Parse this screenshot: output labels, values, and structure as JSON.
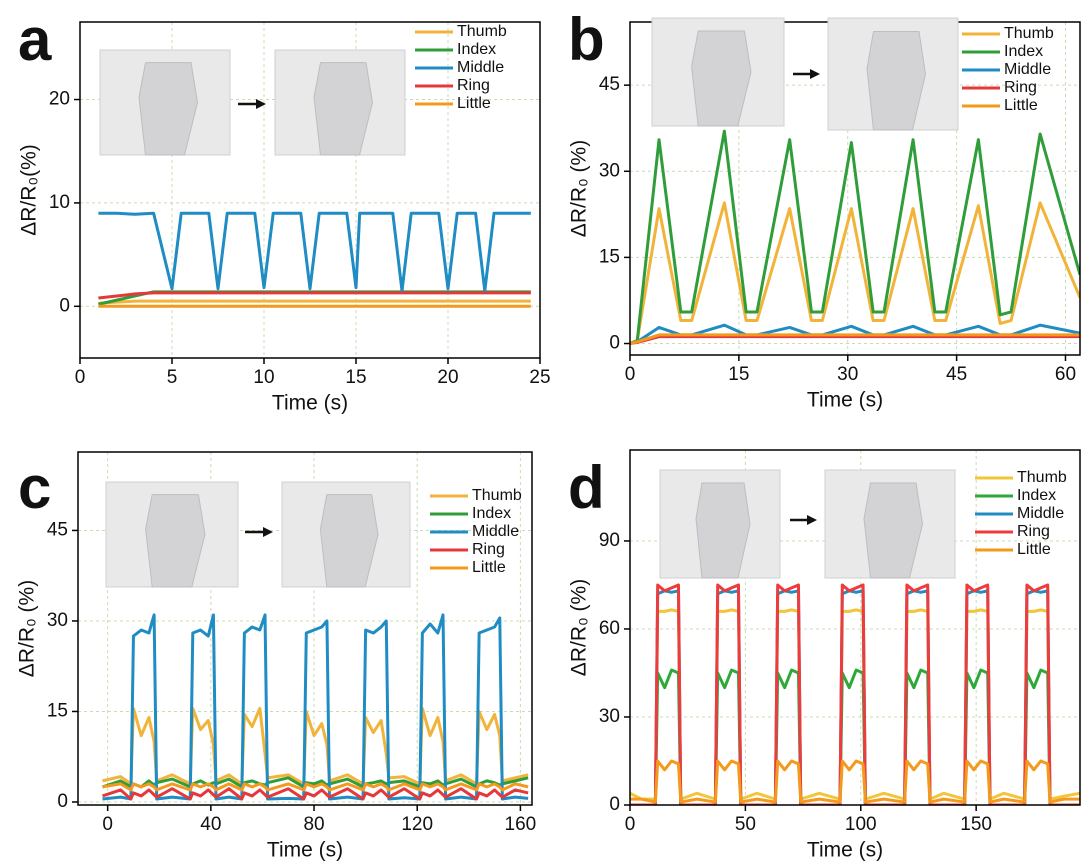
{
  "chart_data": [
    {
      "type": "line",
      "label": "a",
      "x_label": "Time (s)",
      "y_label": "ΔR/R₀(%)",
      "xlim": [
        0,
        25
      ],
      "ylim": [
        -5,
        27.5
      ],
      "xticks": [
        0,
        5,
        10,
        15,
        20,
        25
      ],
      "yticks": [
        0,
        10,
        20
      ],
      "grid": true,
      "legend": "upper right",
      "x": [
        1,
        2,
        3,
        4,
        5,
        5.5,
        7,
        7.5,
        8,
        9.5,
        10,
        10.5,
        12,
        12.5,
        13,
        14.5,
        15,
        15.2,
        17,
        17.5,
        18,
        19.5,
        20,
        20.5,
        21.5,
        22,
        22.5,
        24,
        24.5
      ],
      "series": [
        {
          "name": "Thumb",
          "color": "#f2b33a",
          "values": [
            0.3,
            0.4,
            0.5,
            0.5,
            0.5,
            0.5,
            0.5,
            0.5,
            0.5,
            0.5,
            0.5,
            0.5,
            0.5,
            0.5,
            0.5,
            0.5,
            0.5,
            0.5,
            0.5,
            0.5,
            0.5,
            0.5,
            0.5,
            0.5,
            0.5,
            0.5,
            0.5,
            0.5,
            0.5
          ]
        },
        {
          "name": "Index",
          "color": "#2f9e3a",
          "values": [
            0.2,
            0.6,
            1.0,
            1.4,
            1.4,
            1.4,
            1.4,
            1.4,
            1.4,
            1.4,
            1.4,
            1.4,
            1.4,
            1.4,
            1.4,
            1.4,
            1.4,
            1.4,
            1.4,
            1.4,
            1.4,
            1.4,
            1.4,
            1.4,
            1.4,
            1.4,
            1.4,
            1.4,
            1.4
          ]
        },
        {
          "name": "Middle",
          "color": "#1f8cc4",
          "values": [
            9.0,
            9.0,
            8.9,
            9.0,
            1.7,
            9.0,
            9.0,
            1.7,
            9.0,
            9.0,
            1.8,
            9.0,
            9.0,
            1.7,
            9.0,
            9.0,
            1.8,
            9.0,
            9.0,
            1.5,
            9.0,
            9.0,
            1.7,
            9.0,
            9.0,
            1.5,
            9.0,
            9.0,
            9.0
          ]
        },
        {
          "name": "Ring",
          "color": "#e5383b",
          "values": [
            0.8,
            1.0,
            1.2,
            1.3,
            1.3,
            1.3,
            1.3,
            1.3,
            1.3,
            1.3,
            1.3,
            1.3,
            1.3,
            1.3,
            1.3,
            1.3,
            1.3,
            1.3,
            1.3,
            1.3,
            1.3,
            1.3,
            1.3,
            1.3,
            1.3,
            1.3,
            1.3,
            1.3,
            1.3
          ]
        },
        {
          "name": "Little",
          "color": "#f39a1e",
          "values": [
            0,
            0,
            0,
            0,
            0,
            0,
            0,
            0,
            0,
            0,
            0,
            0,
            0,
            0,
            0,
            0,
            0,
            0,
            0,
            0,
            0,
            0,
            0,
            0,
            0,
            0,
            0,
            0,
            0
          ]
        }
      ]
    },
    {
      "type": "line",
      "label": "b",
      "x_label": "Time (s)",
      "y_label": "ΔR/R₀ (%)",
      "xlim": [
        0,
        62
      ],
      "ylim": [
        -2,
        56
      ],
      "xticks": [
        0,
        15,
        30,
        45,
        60
      ],
      "yticks": [
        0,
        15,
        30,
        45
      ],
      "grid": true,
      "legend": "upper right",
      "x": [
        0,
        1,
        4,
        7,
        8.5,
        13,
        16,
        17.5,
        22,
        25,
        26.5,
        30.5,
        33.5,
        35,
        39,
        42,
        43.5,
        48,
        51,
        52.5,
        56.5,
        62
      ],
      "series": [
        {
          "name": "Thumb",
          "color": "#f2b33a",
          "values": [
            0,
            0.5,
            23.5,
            4,
            4,
            24.5,
            4,
            4,
            23.5,
            4,
            4,
            23.5,
            4,
            4,
            23.5,
            4,
            4,
            24,
            3.5,
            4,
            24.5,
            8
          ]
        },
        {
          "name": "Index",
          "color": "#2f9e3a",
          "values": [
            0,
            0.5,
            35.5,
            5.5,
            5.5,
            37,
            5.5,
            5.5,
            35.5,
            5.5,
            5.5,
            35,
            5.5,
            5.5,
            35.5,
            5.5,
            5.5,
            35.5,
            5,
            5.5,
            36.5,
            12
          ]
        },
        {
          "name": "Middle",
          "color": "#1f8cc4",
          "values": [
            0,
            0.3,
            2.8,
            1.5,
            1.5,
            3.2,
            1.5,
            1.5,
            2.8,
            1.5,
            1.5,
            3,
            1.5,
            1.5,
            3,
            1.5,
            1.5,
            3,
            1.5,
            1.5,
            3.2,
            1.8
          ]
        },
        {
          "name": "Ring",
          "color": "#e5383b",
          "values": [
            0,
            0.2,
            1.2,
            1.2,
            1.2,
            1.2,
            1.2,
            1.2,
            1.2,
            1.2,
            1.2,
            1.2,
            1.2,
            1.2,
            1.2,
            1.2,
            1.2,
            1.2,
            1.2,
            1.2,
            1.2,
            1.2
          ]
        },
        {
          "name": "Little",
          "color": "#f39a1e",
          "values": [
            0,
            0.3,
            1.5,
            1.5,
            1.5,
            1.5,
            1.5,
            1.5,
            1.5,
            1.5,
            1.5,
            1.5,
            1.5,
            1.5,
            1.5,
            1.5,
            1.5,
            1.5,
            1.5,
            1.5,
            1.5,
            1.5
          ]
        }
      ]
    },
    {
      "type": "line",
      "label": "c",
      "x_label": "Time (s)",
      "y_label": "ΔR/R₀ (%)",
      "xlim": [
        -11.5,
        164.5
      ],
      "ylim": [
        -0.5,
        58
      ],
      "xticks": [
        0,
        40,
        80,
        120,
        160
      ],
      "yticks": [
        0,
        15,
        30,
        45
      ],
      "grid": true,
      "legend": "upper right",
      "x": [
        -2,
        5,
        9,
        10,
        13,
        16,
        18,
        19,
        25,
        32,
        33,
        36,
        39,
        41,
        42,
        47,
        52,
        53,
        56,
        59,
        61,
        62,
        70,
        76,
        77,
        80,
        83,
        85,
        86,
        93,
        99,
        100,
        103,
        106,
        108,
        109,
        115,
        121,
        122,
        125,
        128,
        130,
        131,
        137,
        143,
        144,
        147,
        150,
        152,
        153,
        158,
        163
      ],
      "series": [
        {
          "name": "Thumb",
          "color": "#f2b33a",
          "values": [
            3.5,
            4.2,
            3,
            15.5,
            11,
            14,
            10,
            3.5,
            4.5,
            3,
            15.5,
            12,
            13.5,
            9.5,
            3.5,
            4.5,
            3,
            14.5,
            12.5,
            15.5,
            8,
            4,
            4.5,
            3,
            15,
            11,
            13,
            9.5,
            3.5,
            4.5,
            3,
            14,
            11.5,
            13.5,
            8,
            4,
            4.2,
            3,
            15.5,
            11,
            14,
            10,
            3.5,
            4.5,
            3,
            15,
            12,
            14.5,
            11,
            3.5,
            4,
            4.5
          ]
        },
        {
          "name": "Index",
          "color": "#2f9e3a",
          "values": [
            2.5,
            3.5,
            2.5,
            3,
            2.5,
            3.5,
            2.8,
            3.2,
            3.8,
            2.5,
            3,
            3.5,
            2.8,
            3.2,
            3,
            3.8,
            2.5,
            3.2,
            3.5,
            3,
            2.8,
            3.2,
            4,
            2.5,
            3.2,
            3,
            3.5,
            2.8,
            3,
            3.8,
            2.5,
            3,
            3.2,
            3.5,
            3,
            3.2,
            3.5,
            2.5,
            3.2,
            3,
            3.5,
            2.8,
            3,
            3.8,
            2.5,
            3,
            3.5,
            3.2,
            2.8,
            3,
            3.5,
            4
          ]
        },
        {
          "name": "Middle",
          "color": "#1f8cc4",
          "values": [
            0.5,
            0.8,
            0.5,
            27.5,
            28.5,
            28,
            31,
            0.5,
            0.8,
            0.5,
            28,
            28.5,
            27.5,
            31,
            0.5,
            0.8,
            0.5,
            28,
            29,
            28.5,
            31,
            0.5,
            0.6,
            0.5,
            28,
            28.5,
            29,
            30,
            0.5,
            0.8,
            0.5,
            28.5,
            28,
            29,
            30,
            0.5,
            0.7,
            0.5,
            28,
            29.5,
            28,
            31,
            0.5,
            0.8,
            0.5,
            28,
            28.5,
            29,
            30.5,
            0.5,
            0.8,
            0.6
          ]
        },
        {
          "name": "Ring",
          "color": "#e5383b",
          "values": [
            1,
            2,
            0.5,
            1.5,
            1,
            2,
            1.2,
            0.8,
            2.2,
            0.5,
            1.5,
            1,
            2,
            1.2,
            0.8,
            2.2,
            0.5,
            1.5,
            1,
            2,
            1.2,
            0.8,
            2.2,
            0.5,
            1.5,
            1,
            2,
            1.2,
            0.8,
            2.2,
            0.5,
            1.5,
            1,
            2,
            1.2,
            0.8,
            2.2,
            0.5,
            1.5,
            1,
            2,
            1.2,
            0.8,
            2.2,
            0.5,
            1.5,
            1,
            2,
            1.2,
            0.8,
            2,
            1.5
          ]
        },
        {
          "name": "Little",
          "color": "#f39a1e",
          "values": [
            2.5,
            3,
            2,
            3,
            2.5,
            3,
            2.5,
            2,
            3,
            2,
            3,
            2.5,
            3,
            2.5,
            2,
            3,
            2,
            3,
            2.5,
            3,
            2.5,
            2,
            3,
            2,
            3,
            2.5,
            3,
            2.5,
            2,
            3,
            2,
            3,
            2.5,
            3,
            2.5,
            2,
            3,
            2,
            3,
            2.5,
            3,
            2.5,
            2,
            3,
            2,
            3,
            2.5,
            3,
            2.5,
            2,
            3,
            2.5
          ]
        }
      ]
    },
    {
      "type": "line",
      "label": "d",
      "x_label": "Time (s)",
      "y_label": "ΔR/R₀ (%)",
      "xlim": [
        0,
        195
      ],
      "ylim": [
        0,
        121
      ],
      "xticks": [
        0,
        50,
        100,
        150
      ],
      "yticks": [
        0,
        30,
        60,
        90
      ],
      "grid": true,
      "legend": "upper right",
      "x": [
        0,
        5,
        11,
        12,
        15,
        18,
        21,
        22,
        29,
        37,
        38,
        41,
        44,
        47,
        48,
        55,
        63,
        64,
        67,
        70,
        73,
        74,
        82,
        91,
        92,
        95,
        98,
        101,
        102,
        110,
        119,
        120,
        123,
        126,
        129,
        130,
        136,
        145,
        146,
        149,
        152,
        155,
        156,
        162,
        171,
        172,
        175,
        178,
        181,
        182,
        188,
        195
      ],
      "series": [
        {
          "name": "Thumb",
          "color": "#f2c53a",
          "values": [
            4,
            2,
            2,
            66,
            66,
            66.5,
            66,
            2,
            4,
            2,
            66,
            66,
            66.5,
            66,
            2,
            4,
            2,
            66,
            66,
            66.5,
            66,
            2,
            4,
            2,
            66,
            66,
            66.5,
            66,
            2,
            4,
            2,
            66,
            66,
            66.5,
            66,
            2,
            4,
            2,
            66,
            66,
            66.5,
            66,
            2,
            4,
            2,
            66,
            66,
            66.5,
            66,
            2,
            3,
            4
          ]
        },
        {
          "name": "Index",
          "color": "#2fa83a",
          "values": [
            0,
            0,
            0,
            45,
            40,
            46,
            45,
            0,
            0,
            0,
            45,
            40,
            46,
            45,
            0,
            0,
            0,
            45,
            40,
            46,
            45,
            0,
            0,
            0,
            45,
            40,
            46,
            45,
            0,
            0,
            0,
            45,
            40,
            46,
            45,
            0,
            0,
            0,
            45,
            40,
            46,
            45,
            0,
            0,
            0,
            45,
            40,
            46,
            45,
            0,
            0,
            0
          ]
        },
        {
          "name": "Middle",
          "color": "#1f8cc4",
          "values": [
            0,
            0,
            0,
            72,
            73,
            72.5,
            73,
            0,
            0,
            0,
            72,
            73,
            72.5,
            73,
            0,
            0,
            0,
            72,
            73,
            72.5,
            73,
            0,
            0,
            0,
            72,
            73,
            72.5,
            73,
            0,
            0,
            0,
            72,
            73,
            72.5,
            73,
            0,
            0,
            0,
            72,
            73,
            72.5,
            73,
            0,
            0,
            0,
            72,
            73,
            72.5,
            73,
            0,
            0,
            0
          ]
        },
        {
          "name": "Ring",
          "color": "#ee3b3b",
          "values": [
            0,
            0,
            0,
            75,
            73,
            74,
            75,
            0,
            0,
            0,
            75,
            73,
            74,
            75,
            0,
            0,
            0,
            75,
            73,
            74,
            75,
            0,
            0,
            0,
            75,
            73,
            74,
            75,
            0,
            0,
            0,
            75,
            73,
            74,
            75,
            0,
            0,
            0,
            75,
            73,
            74,
            75,
            0,
            0,
            0,
            75,
            73,
            74,
            75,
            0,
            0,
            0
          ]
        },
        {
          "name": "Little",
          "color": "#f39a1e",
          "values": [
            2,
            2,
            1,
            15,
            12,
            15,
            14,
            1,
            2,
            1,
            15,
            12,
            15,
            14,
            1,
            2,
            1,
            15,
            12,
            15,
            14,
            1,
            2,
            1,
            15,
            12,
            15,
            14,
            1,
            2,
            1,
            15,
            12,
            15,
            14,
            1,
            2,
            1,
            15,
            12,
            15,
            14,
            1,
            2,
            1,
            15,
            12,
            15,
            14,
            1,
            2,
            2
          ]
        }
      ]
    }
  ]
}
